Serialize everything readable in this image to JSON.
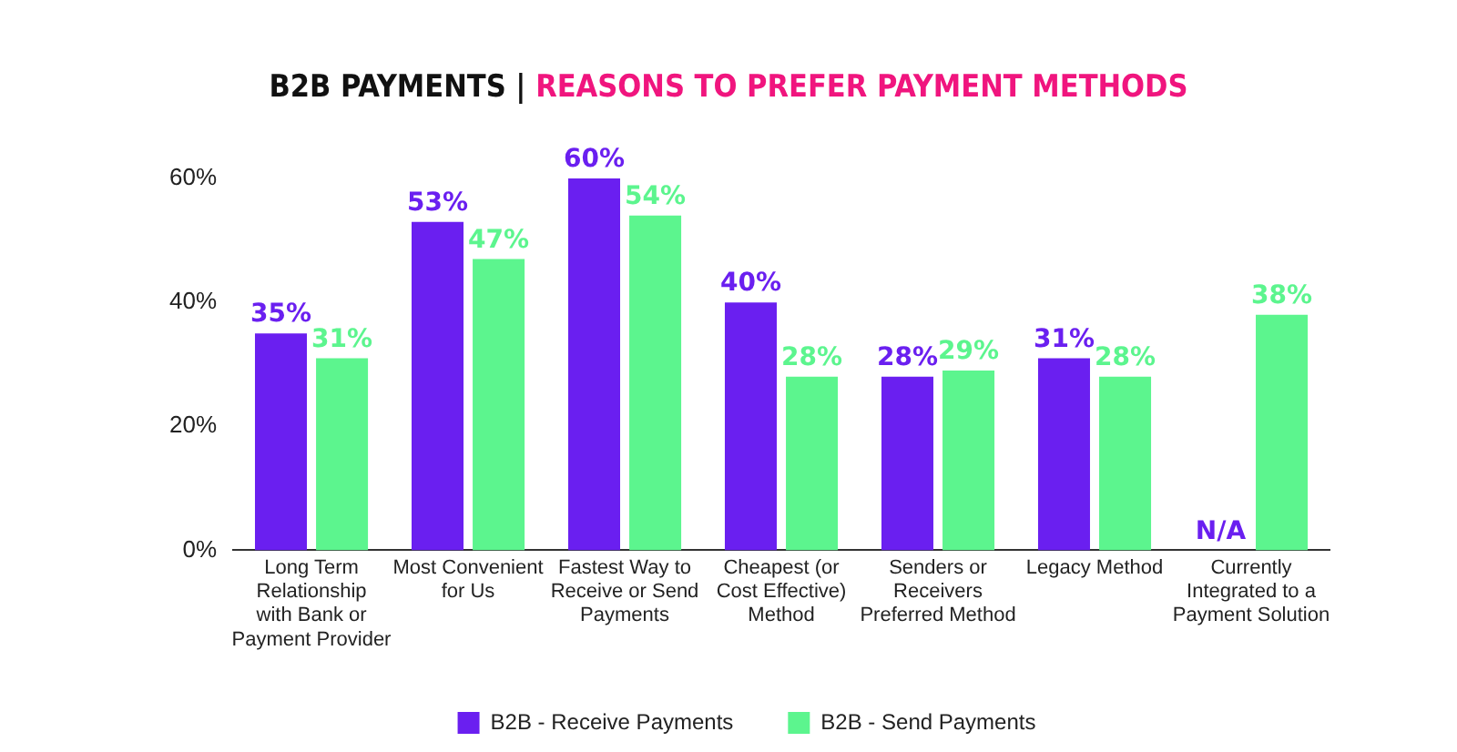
{
  "chart_data": {
    "type": "bar",
    "title": "B2B PAYMENTS | REASONS TO PREFER PAYMENT METHODS",
    "categories": [
      "Long Term Relationship with Bank or Payment Provider",
      "Most Convenient for Us",
      "Fastest Way to Receive or Send Payments",
      "Cheapest (or Cost Effective) Method",
      "Senders or Receivers Preferred Method",
      "Legacy Method",
      "Currently Integrated to a Payment Solution"
    ],
    "series": [
      {
        "name": "B2B - Receive Payments",
        "color": "#6a1ff0",
        "values": [
          35,
          53,
          60,
          40,
          28,
          31,
          null
        ],
        "value_labels": [
          "35%",
          "53%",
          "60%",
          "40%",
          "28%",
          "31%",
          "N/A"
        ]
      },
      {
        "name": "B2B - Send Payments",
        "color": "#5cf58e",
        "values": [
          31,
          47,
          54,
          28,
          29,
          28,
          38
        ],
        "value_labels": [
          "31%",
          "47%",
          "54%",
          "28%",
          "29%",
          "28%",
          "38%"
        ]
      }
    ],
    "ylim": [
      0,
      60
    ],
    "yticks": [
      {
        "value": 0,
        "label": "0%"
      },
      {
        "value": 20,
        "label": "20%"
      },
      {
        "value": 40,
        "label": "40%"
      },
      {
        "value": 60,
        "label": "60%"
      }
    ],
    "grid": false,
    "legend": "bottom"
  }
}
